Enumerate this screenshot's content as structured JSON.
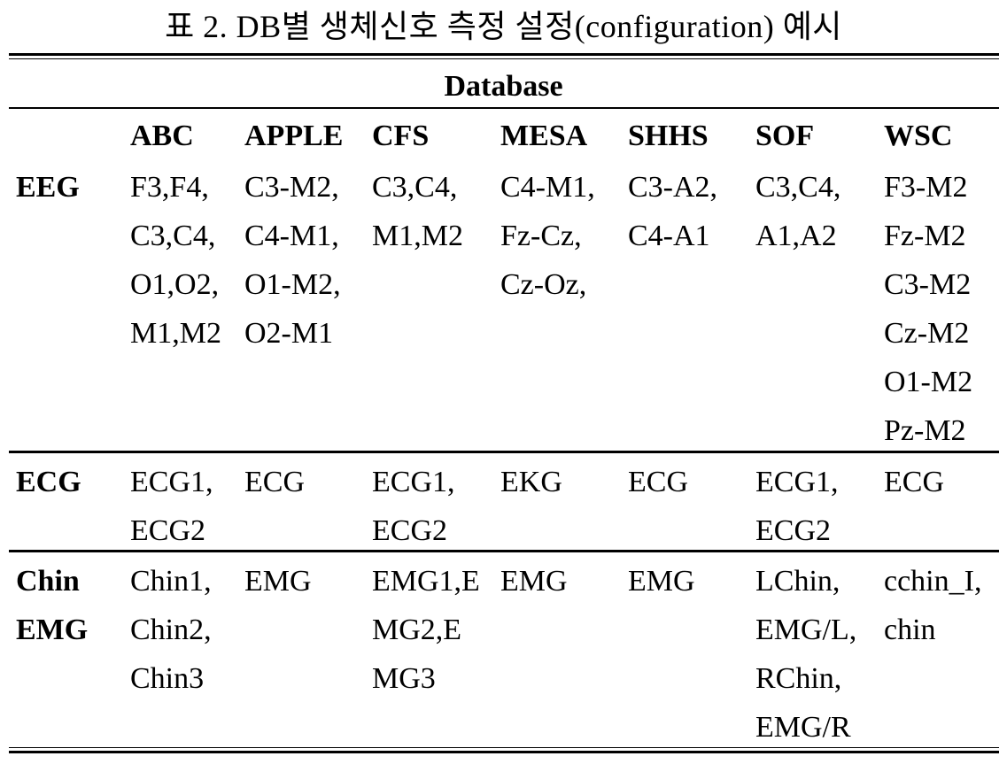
{
  "caption": "표 2. DB별 생체신호 측정 설정(configuration) 예시",
  "table": {
    "super_header": "Database",
    "columns": [
      "ABC",
      "APPLE",
      "CFS",
      "MESA",
      "SHHS",
      "SOF",
      "WSC"
    ],
    "rows": [
      {
        "label": [
          "EEG"
        ],
        "cells": [
          [
            "F3,F4,",
            "C3,C4,",
            "O1,O2,",
            "M1,M2"
          ],
          [
            "C3-M2,",
            "C4-M1,",
            "O1-M2,",
            "O2-M1"
          ],
          [
            "C3,C4,",
            "M1,M2"
          ],
          [
            "C4-M1,",
            "Fz-Cz,",
            "Cz-Oz,"
          ],
          [
            "C3-A2,",
            "C4-A1"
          ],
          [
            "C3,C4,",
            "A1,A2"
          ],
          [
            "F3-M2",
            "Fz-M2",
            "C3-M2",
            "Cz-M2",
            "O1-M2",
            "Pz-M2"
          ]
        ]
      },
      {
        "label": [
          "ECG"
        ],
        "cells": [
          [
            "ECG1,",
            "ECG2"
          ],
          [
            "ECG"
          ],
          [
            "ECG1,",
            "ECG2"
          ],
          [
            "EKG"
          ],
          [
            "ECG"
          ],
          [
            "ECG1,",
            "ECG2"
          ],
          [
            "ECG"
          ]
        ]
      },
      {
        "label": [
          "Chin",
          "EMG"
        ],
        "cells": [
          [
            "Chin1,",
            "Chin2,",
            "Chin3"
          ],
          [
            "EMG"
          ],
          [
            "EMG1,E",
            "MG2,E",
            "MG3"
          ],
          [
            "EMG"
          ],
          [
            "EMG"
          ],
          [
            "LChin,",
            "EMG/L,",
            "RChin,",
            "EMG/R"
          ],
          [
            "cchin_I,",
            "chin"
          ]
        ]
      }
    ]
  }
}
